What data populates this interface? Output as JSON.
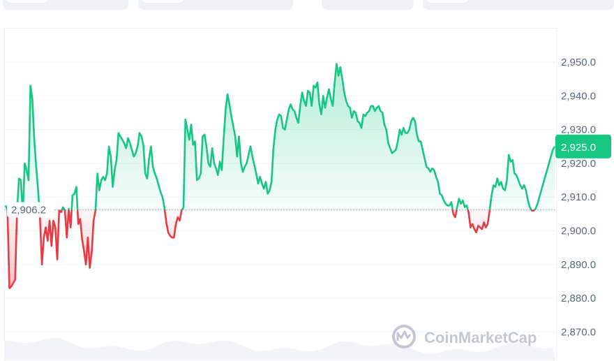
{
  "chart_data": {
    "type": "line",
    "title": "",
    "xlabel": "",
    "ylabel": "",
    "ylim": [
      2865,
      2960
    ],
    "y_ticks": [
      "2,950.0",
      "2,940.0",
      "2,930.0",
      "2,920.0",
      "2,910.0",
      "2,900.0",
      "2,890.0",
      "2,880.0",
      "2,870.0"
    ],
    "y_tick_values": [
      2950,
      2940,
      2930,
      2920,
      2910,
      2900,
      2890,
      2880,
      2870
    ],
    "reference_value": 2906.2,
    "reference_label": "2,906.2",
    "current_value": 2925.0,
    "current_label": "2,925.0",
    "grid": true,
    "values": [
      2907.5,
      2906.0,
      2883.0,
      2883.5,
      2884.5,
      2885.5,
      2906.0,
      2915.5,
      2915.0,
      2905.0,
      2920.0,
      2918.0,
      2915.0,
      2943.0,
      2939.0,
      2927.0,
      2919.0,
      2912.0,
      2903.5,
      2890.0,
      2898.0,
      2901.0,
      2897.0,
      2903.0,
      2895.5,
      2903.0,
      2901.0,
      2891.5,
      2906.0,
      2905.5,
      2907.0,
      2906.0,
      2898.0,
      2906.5,
      2901.0,
      2910.5,
      2911.0,
      2913.0,
      2902.0,
      2903.5,
      2897.5,
      2894.0,
      2890.0,
      2898.0,
      2889.0,
      2893.5,
      2903.0,
      2906.0,
      2917.0,
      2912.0,
      2915.0,
      2916.0,
      2915.0,
      2917.0,
      2925.0,
      2922.0,
      2913.0,
      2918.0,
      2921.0,
      2929.0,
      2928.0,
      2927.0,
      2926.0,
      2924.5,
      2927.5,
      2926.0,
      2924.0,
      2922.0,
      2923.0,
      2925.0,
      2929.0,
      2928.0,
      2925.5,
      2917.0,
      2915.5,
      2921.5,
      2925.0,
      2919.0,
      2917.0,
      2915.5,
      2913.5,
      2911.5,
      2910.0,
      2907.0,
      2902.5,
      2899.5,
      2898.5,
      2898.0,
      2898.0,
      2902.0,
      2904.0,
      2903.0,
      2906.0,
      2907.0,
      2933.0,
      2930.0,
      2927.0,
      2931.5,
      2925.5,
      2926.5,
      2915.0,
      2915.5,
      2917.0,
      2928.0,
      2928.5,
      2925.0,
      2920.0,
      2919.0,
      2924.5,
      2920.0,
      2918.5,
      2916.5,
      2920.5,
      2918.0,
      2927.5,
      2936.0,
      2940.5,
      2937.5,
      2934.0,
      2931.0,
      2928.0,
      2922.0,
      2928.0,
      2920.0,
      2917.5,
      2919.0,
      2920.0,
      2922.5,
      2925.0,
      2922.0,
      2919.5,
      2917.0,
      2914.0,
      2916.0,
      2914.0,
      2912.5,
      2914.5,
      2911.0,
      2912.0,
      2914.5,
      2924.5,
      2930.0,
      2933.0,
      2934.5,
      2934.0,
      2930.5,
      2930.0,
      2933.0,
      2936.0,
      2937.5,
      2936.0,
      2935.5,
      2933.5,
      2932.0,
      2937.0,
      2941.0,
      2938.5,
      2937.0,
      2941.5,
      2941.0,
      2937.0,
      2943.0,
      2942.5,
      2944.0,
      2937.5,
      2934.5,
      2940.0,
      2936.5,
      2939.5,
      2942.0,
      2939.0,
      2937.0,
      2944.0,
      2949.5,
      2946.0,
      2948.5,
      2945.0,
      2941.0,
      2938.5,
      2937.0,
      2936.5,
      2933.5,
      2935.5,
      2935.0,
      2932.5,
      2932.0,
      2930.5,
      2934.5,
      2934.0,
      2935.0,
      2935.5,
      2937.0,
      2937.0,
      2935.5,
      2936.5,
      2937.0,
      2935.5,
      2935.0,
      2931.5,
      2930.0,
      2926.0,
      2924.5,
      2923.0,
      2923.5,
      2924.0,
      2926.5,
      2930.0,
      2928.5,
      2930.5,
      2929.0,
      2929.0,
      2930.0,
      2932.5,
      2933.5,
      2932.5,
      2928.5,
      2926.5,
      2926.5,
      2924.0,
      2921.5,
      2919.0,
      2918.5,
      2917.5,
      2918.5,
      2918.0,
      2916.0,
      2914.5,
      2911.0,
      2910.5,
      2909.0,
      2908.0,
      2907.5,
      2907.5,
      2908.5,
      2905.0,
      2904.0,
      2907.0,
      2909.5,
      2908.0,
      2909.0,
      2907.0,
      2907.5,
      2905.5,
      2901.0,
      2902.0,
      2900.5,
      2899.5,
      2901.5,
      2901.0,
      2900.5,
      2902.5,
      2901.0,
      2902.0,
      2906.0,
      2910.5,
      2913.5,
      2913.0,
      2915.5,
      2913.5,
      2914.5,
      2912.5,
      2912.0,
      2915.0,
      2922.5,
      2920.5,
      2921.0,
      2917.0,
      2916.5,
      2915.0,
      2913.5,
      2912.5,
      2913.5,
      2912.0,
      2909.0,
      2907.0,
      2906.0,
      2906.0,
      2906.5,
      2908.0,
      2910.0,
      2912.0,
      2914.0,
      2916.0,
      2918.0,
      2920.0,
      2922.0,
      2924.0,
      2925.0
    ],
    "up_color": "#16c784",
    "down_color": "#ea3943"
  },
  "watermark": {
    "text": "CoinMarketCap",
    "icon": "coinmarketcap-logo"
  }
}
